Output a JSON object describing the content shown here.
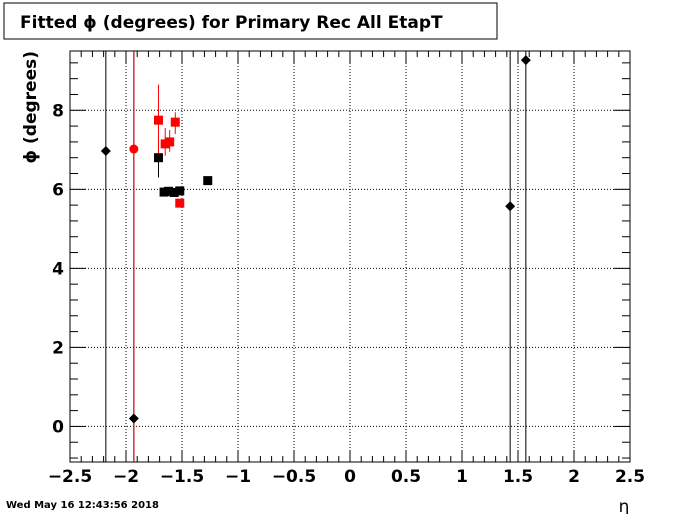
{
  "chart_data": {
    "type": "scatter",
    "title": "Fitted ϕ (degrees) for Primary Rec All EtapT",
    "xlabel": "η",
    "ylabel": "ϕ (degrees)",
    "xlim": [
      -2.5,
      2.5
    ],
    "ylim": [
      -0.9,
      9.5
    ],
    "grid": true,
    "x_ticks": [
      -2.5,
      -2,
      -1.5,
      -1,
      -0.5,
      0,
      0.5,
      1,
      1.5,
      2,
      2.5
    ],
    "x_tick_labels": [
      "−2.5",
      "−2",
      "−1.5",
      "−1",
      "−0.5",
      "0",
      "0.5",
      "1",
      "1.5",
      "2",
      "2.5"
    ],
    "y_ticks": [
      0,
      2,
      4,
      6,
      8
    ],
    "y_tick_labels": [
      "0",
      "2",
      "4",
      "6",
      "8"
    ],
    "series": [
      {
        "color": "#000000",
        "marker": "diamond",
        "points": [
          {
            "x": -2.18,
            "y": 6.97,
            "ylow": -0.9,
            "yhigh": 9.5
          },
          {
            "x": -1.93,
            "y": 0.2,
            "ylow": -0.9,
            "yhigh": 9.5
          },
          {
            "x": 1.43,
            "y": 5.57,
            "ylow": -0.9,
            "yhigh": 9.5
          },
          {
            "x": 1.57,
            "y": 9.27,
            "ylow": -0.9,
            "yhigh": 9.5
          }
        ]
      },
      {
        "color": "#ff0000",
        "marker": "circle",
        "points": [
          {
            "x": -1.93,
            "y": 7.02,
            "ylow": -0.9,
            "yhigh": 9.5
          }
        ]
      },
      {
        "color": "#000000",
        "marker": "square",
        "points": [
          {
            "x": -1.71,
            "y": 6.8,
            "ylow": 6.3,
            "yhigh": 7.3
          },
          {
            "x": -1.66,
            "y": 5.93,
            "ylow": 5.87,
            "yhigh": 5.99
          },
          {
            "x": -1.62,
            "y": 5.95,
            "ylow": 5.89,
            "yhigh": 6.01
          },
          {
            "x": -1.57,
            "y": 5.92,
            "ylow": 5.86,
            "yhigh": 5.98
          },
          {
            "x": -1.52,
            "y": 5.96,
            "ylow": 5.9,
            "yhigh": 6.02
          },
          {
            "x": -1.27,
            "y": 6.22,
            "ylow": 6.16,
            "yhigh": 6.28
          }
        ]
      },
      {
        "color": "#ff0000",
        "marker": "square",
        "points": [
          {
            "x": -1.71,
            "y": 7.75,
            "ylow": 6.85,
            "yhigh": 8.65
          },
          {
            "x": -1.65,
            "y": 7.15,
            "ylow": 6.85,
            "yhigh": 7.55
          },
          {
            "x": -1.61,
            "y": 7.2,
            "ylow": 6.95,
            "yhigh": 7.5
          },
          {
            "x": -1.56,
            "y": 7.7,
            "ylow": 7.4,
            "yhigh": 7.95
          },
          {
            "x": -1.52,
            "y": 5.65,
            "ylow": 5.55,
            "yhigh": 5.75
          }
        ]
      }
    ]
  },
  "footer": {
    "timestamp": "Wed May 16 12:43:56 2018"
  }
}
